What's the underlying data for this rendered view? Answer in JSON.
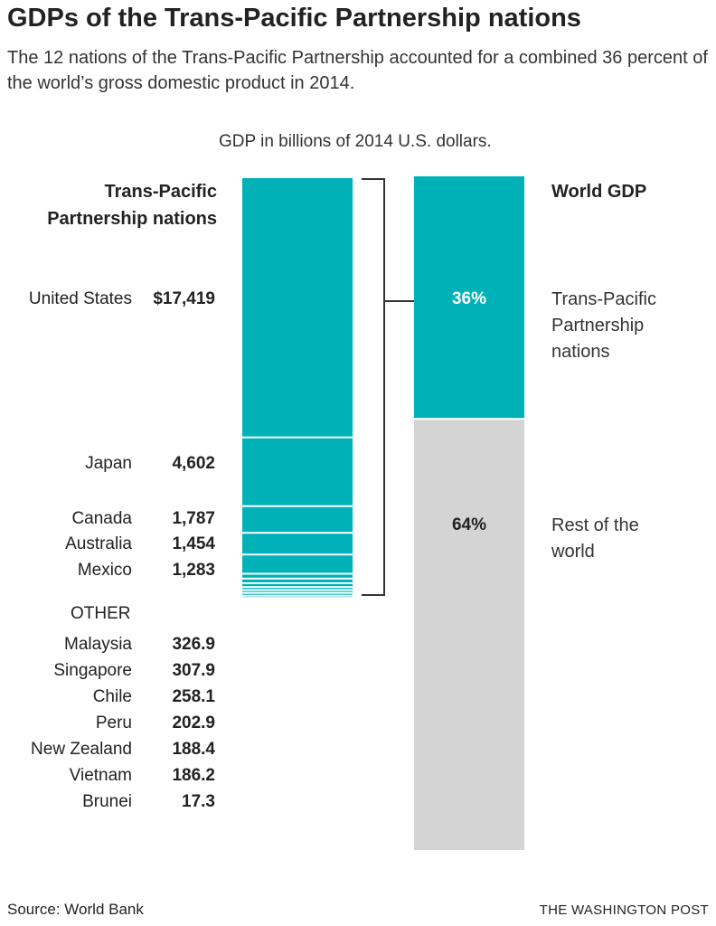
{
  "title": "GDPs of the Trans-Pacific Partnership nations",
  "subtitle": "The 12 nations of the Trans-Pacific Partnership accounted for a combined 36 percent of the world’s gross domestic product in 2014.",
  "source": "Source: World Bank",
  "credit": "THE WASHINGTON POST",
  "colors": {
    "tpp": "#00b2b8",
    "rest": "#d4d4d4",
    "bracket": "#333333"
  },
  "chart_data": {
    "type": "bar",
    "title": "GDPs of the Trans-Pacific Partnership nations",
    "unit_label": "GDP in billions of 2014 U.S. dollars.",
    "left": {
      "header": "Trans-Pacific Partnership nations",
      "other_label": "OTHER",
      "categories": [
        "United States",
        "Japan",
        "Canada",
        "Australia",
        "Mexico",
        "Malaysia",
        "Singapore",
        "Chile",
        "Peru",
        "New Zealand",
        "Vietnam",
        "Brunei"
      ],
      "values": [
        17419,
        4602,
        1787,
        1454,
        1283,
        326.9,
        307.9,
        258.1,
        202.9,
        188.4,
        186.2,
        17.3
      ],
      "value_labels": [
        "$17,419",
        "4,602",
        "1,787",
        "1,454",
        "1,283",
        "326.9",
        "307.9",
        "258.1",
        "202.9",
        "188.4",
        "186.2",
        "17.3"
      ]
    },
    "right": {
      "header": "World GDP",
      "categories": [
        "Trans-Pacific Partnership nations",
        "Rest of the world"
      ],
      "values": [
        36,
        64
      ],
      "value_labels": [
        "36%",
        "64%"
      ]
    }
  }
}
